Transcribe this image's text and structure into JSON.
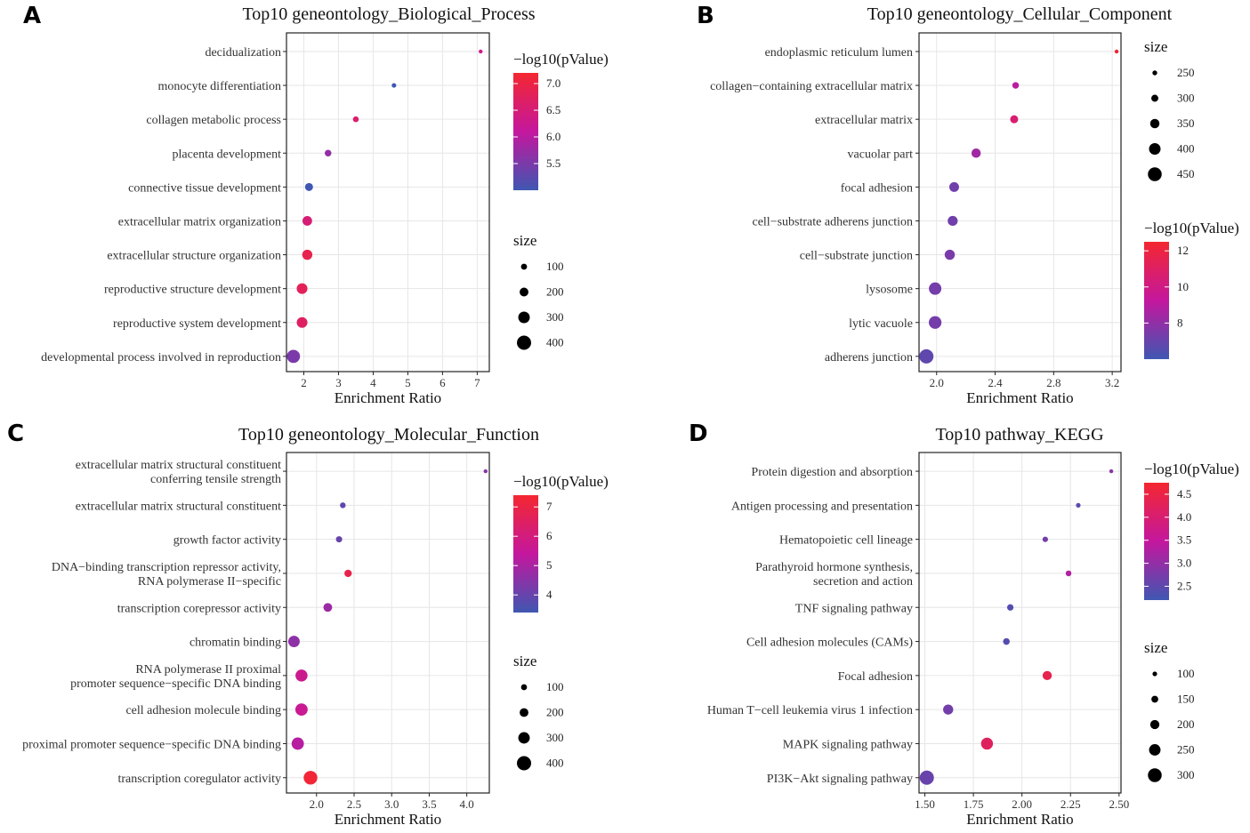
{
  "chart_data": [
    {
      "type": "scatter",
      "letter": "A",
      "title": "Top10 geneontology_Biological_Process",
      "xlabel": "Enrichment Ratio",
      "xlim": [
        1.5,
        7.35
      ],
      "xticks": [
        2,
        3,
        4,
        5,
        6,
        7
      ],
      "xtick_labels": [
        "2",
        "3",
        "4",
        "5",
        "6",
        "7"
      ],
      "categories": [
        [
          "decidualization"
        ],
        [
          "monocyte differentiation"
        ],
        [
          "collagen metabolic process"
        ],
        [
          "placenta development"
        ],
        [
          "connective tissue development"
        ],
        [
          "extracellular matrix organization"
        ],
        [
          "extracellular structure organization"
        ],
        [
          "reproductive structure development"
        ],
        [
          "reproductive system development"
        ],
        [
          "developmental process involved in reproduction"
        ]
      ],
      "x": [
        7.1,
        4.6,
        3.5,
        2.7,
        2.15,
        2.1,
        2.1,
        1.95,
        1.95,
        1.7
      ],
      "size": [
        20,
        45,
        90,
        120,
        170,
        230,
        250,
        270,
        270,
        360
      ],
      "pvalue": [
        6.3,
        5.0,
        6.6,
        5.7,
        5.0,
        6.5,
        6.9,
        6.8,
        6.7,
        5.5
      ],
      "color_legend": {
        "title": "−log10(pValue)",
        "min": 5.0,
        "max": 7.2,
        "ticks": [
          5.5,
          6.0,
          6.5,
          7.0
        ],
        "tick_labels": [
          "5.5",
          "6.0",
          "6.5",
          "7.0"
        ]
      },
      "size_legend": {
        "title": "size",
        "values": [
          100,
          200,
          300,
          400
        ],
        "labels": [
          "100",
          "200",
          "300",
          "400"
        ],
        "size_range": [
          20,
          400
        ]
      }
    },
    {
      "type": "scatter",
      "letter": "B",
      "title": "Top10 geneontology_Cellular_Component",
      "xlabel": "Enrichment Ratio",
      "xlim": [
        1.88,
        3.26
      ],
      "xticks": [
        2.0,
        2.4,
        2.8,
        3.2
      ],
      "xtick_labels": [
        "2.0",
        "2.4",
        "2.8",
        "3.2"
      ],
      "categories": [
        [
          "endoplasmic reticulum lumen"
        ],
        [
          "collagen−containing extracellular matrix"
        ],
        [
          "extracellular matrix"
        ],
        [
          "vacuolar part"
        ],
        [
          "focal adhesion"
        ],
        [
          "cell−substrate adherens junction"
        ],
        [
          "cell−substrate junction"
        ],
        [
          "lysosome"
        ],
        [
          "lytic vacuole"
        ],
        [
          "adherens junction"
        ]
      ],
      "x": [
        3.23,
        2.54,
        2.53,
        2.27,
        2.12,
        2.11,
        2.09,
        1.99,
        1.99,
        1.93
      ],
      "size": [
        230,
        290,
        320,
        350,
        360,
        365,
        370,
        420,
        425,
        460
      ],
      "pvalue": [
        12.2,
        9.0,
        10.6,
        8.4,
        7.2,
        7.2,
        7.4,
        7.3,
        7.3,
        6.8
      ],
      "color_legend": {
        "title": "−log10(pValue)",
        "min": 6.0,
        "max": 12.5,
        "ticks": [
          8,
          10,
          12
        ],
        "tick_labels": [
          "8",
          "10",
          "12"
        ]
      },
      "size_legend": {
        "title": "size",
        "values": [
          250,
          300,
          350,
          400,
          450
        ],
        "labels": [
          "250",
          "300",
          "350",
          "400",
          "450"
        ],
        "size_range": [
          230,
          460
        ]
      }
    },
    {
      "type": "scatter",
      "letter": "C",
      "title": "Top10 geneontology_Molecular_Function",
      "xlabel": "Enrichment Ratio",
      "xlim": [
        1.6,
        4.3
      ],
      "xticks": [
        2.0,
        2.5,
        3.0,
        3.5,
        4.0
      ],
      "xtick_labels": [
        "2.0",
        "2.5",
        "3.0",
        "3.5",
        "4.0"
      ],
      "categories": [
        [
          "extracellular matrix structural constituent",
          "conferring tensile strength"
        ],
        [
          "extracellular matrix structural constituent"
        ],
        [
          "growth factor activity"
        ],
        [
          "DNA−binding transcription repressor activity,",
          "RNA polymerase II−specific"
        ],
        [
          "transcription corepressor activity"
        ],
        [
          "chromatin binding"
        ],
        [
          "RNA polymerase II proximal",
          "promoter sequence−specific DNA binding"
        ],
        [
          "cell adhesion molecule binding"
        ],
        [
          "proximal promoter sequence−specific DNA binding"
        ],
        [
          "transcription coregulator activity"
        ]
      ],
      "x": [
        4.25,
        2.35,
        2.3,
        2.42,
        2.15,
        1.7,
        1.8,
        1.8,
        1.75,
        1.92
      ],
      "size": [
        25,
        90,
        110,
        150,
        200,
        300,
        320,
        330,
        330,
        380
      ],
      "pvalue": [
        4.5,
        3.9,
        4.0,
        6.9,
        4.8,
        4.6,
        5.7,
        5.6,
        5.2,
        7.3
      ],
      "color_legend": {
        "title": "−log10(pValue)",
        "min": 3.4,
        "max": 7.4,
        "ticks": [
          4,
          5,
          6,
          7
        ],
        "tick_labels": [
          "4",
          "5",
          "6",
          "7"
        ]
      },
      "size_legend": {
        "title": "size",
        "values": [
          100,
          200,
          300,
          400
        ],
        "labels": [
          "100",
          "200",
          "300",
          "400"
        ],
        "size_range": [
          25,
          400
        ]
      }
    },
    {
      "type": "scatter",
      "letter": "D",
      "title": "Top10 pathway_KEGG",
      "xlabel": "Enrichment Ratio",
      "xlim": [
        1.47,
        2.51
      ],
      "xticks": [
        1.5,
        1.75,
        2.0,
        2.25,
        2.5
      ],
      "xtick_labels": [
        "1.50",
        "1.75",
        "2.00",
        "2.25",
        "2.50"
      ],
      "categories": [
        [
          "Protein digestion and absorption"
        ],
        [
          "Antigen processing and presentation"
        ],
        [
          "Hematopoietic cell lineage"
        ],
        [
          "Parathyroid hormone synthesis,",
          "secretion and action"
        ],
        [
          "TNF signaling pathway"
        ],
        [
          "Cell adhesion molecules (CAMs)"
        ],
        [
          "Focal adhesion"
        ],
        [
          "Human T−cell leukemia virus 1 infection"
        ],
        [
          "MAPK signaling pathway"
        ],
        [
          "PI3K−Akt signaling pathway"
        ]
      ],
      "x": [
        2.46,
        2.29,
        2.12,
        2.24,
        1.94,
        1.92,
        2.13,
        1.62,
        1.82,
        1.51
      ],
      "size": [
        85,
        100,
        120,
        125,
        140,
        145,
        200,
        220,
        260,
        310
      ],
      "pvalue": [
        2.9,
        2.5,
        2.7,
        3.3,
        2.4,
        2.4,
        4.4,
        2.7,
        4.2,
        2.6
      ],
      "color_legend": {
        "title": "−log10(pValue)",
        "min": 2.2,
        "max": 4.75,
        "ticks": [
          2.5,
          3.0,
          3.5,
          4.0,
          4.5
        ],
        "tick_labels": [
          "2.5",
          "3.0",
          "3.5",
          "4.0",
          "4.5"
        ]
      },
      "size_legend": {
        "title": "size",
        "values": [
          100,
          150,
          200,
          250,
          300
        ],
        "labels": [
          "100",
          "150",
          "200",
          "250",
          "300"
        ],
        "size_range": [
          85,
          310
        ]
      }
    }
  ],
  "colors": {
    "low": "#3f57b2",
    "mid": "#c4179e",
    "high": "#f42730",
    "grid": "#e6e6e6",
    "frame": "#222222"
  }
}
